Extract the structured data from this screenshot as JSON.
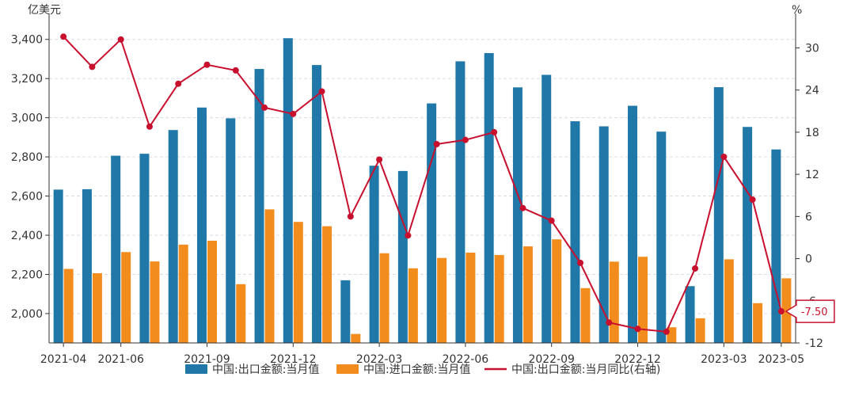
{
  "chart_data": {
    "type": "bar",
    "left_unit": "亿美元",
    "right_unit": "%",
    "categories": [
      "2021-04",
      "2021-05",
      "2021-06",
      "2021-07",
      "2021-08",
      "2021-09",
      "2021-10",
      "2021-11",
      "2021-12",
      "2022-01",
      "2022-02",
      "2022-03",
      "2022-04",
      "2022-05",
      "2022-06",
      "2022-07",
      "2022-08",
      "2022-09",
      "2022-10",
      "2022-11",
      "2022-12",
      "2023-01",
      "2023-02",
      "2023-03",
      "2023-04",
      "2023-05"
    ],
    "x_tick_labels": [
      "2021-04",
      "2021-06",
      "2021-09",
      "2021-12",
      "2022-03",
      "2022-06",
      "2022-09",
      "2022-12",
      "2023-03",
      "2023-05"
    ],
    "y_left": {
      "min": 1850,
      "max": 3500,
      "ticks": [
        "2,000",
        "2,200",
        "2,400",
        "2,600",
        "2,800",
        "3,000",
        "3,200",
        "3,400"
      ],
      "tick_values": [
        2000,
        2200,
        2400,
        2600,
        2800,
        3000,
        3200,
        3400
      ]
    },
    "y_right": {
      "min": -12,
      "max": 34,
      "ticks": [
        "-12",
        "-6",
        "0",
        "6",
        "12",
        "18",
        "24",
        "30"
      ],
      "tick_values": [
        -12,
        -6,
        0,
        6,
        12,
        18,
        24,
        30
      ]
    },
    "grid": true,
    "legend_position": "bottom",
    "series": [
      {
        "name": "中国:出口金额:当月值",
        "kind": "bar",
        "axis": "left",
        "color": "#2078a8",
        "values": [
          2633,
          2635,
          2806,
          2816,
          2937,
          3052,
          2997,
          3249,
          3406,
          3269,
          2170,
          2755,
          2728,
          3073,
          3288,
          3330,
          3155,
          3219,
          2982,
          2956,
          3061,
          2929,
          2140,
          3156,
          2953,
          2838
        ]
      },
      {
        "name": "中国:进口金额:当月值",
        "kind": "bar",
        "axis": "left",
        "color": "#f28c1c",
        "values": [
          2228,
          2206,
          2314,
          2266,
          2352,
          2372,
          2150,
          2532,
          2468,
          2446,
          1896,
          2308,
          2231,
          2284,
          2311,
          2299,
          2343,
          2379,
          2130,
          2265,
          2290,
          1930,
          1976,
          2277,
          2053,
          2180
        ]
      },
      {
        "name": "中国:出口金额:当月同比(右轴)",
        "kind": "line",
        "axis": "right",
        "color": "#c8102e",
        "values": [
          31.6,
          27.3,
          31.2,
          18.8,
          24.9,
          27.6,
          26.8,
          21.5,
          20.6,
          23.8,
          6.0,
          14.1,
          3.3,
          16.3,
          16.9,
          18.0,
          7.2,
          5.4,
          -0.6,
          -9.1,
          -10.0,
          -10.4,
          -1.4,
          14.5,
          8.4,
          -7.5
        ]
      }
    ],
    "annotations": [
      {
        "text": "-7.50"
      }
    ]
  }
}
